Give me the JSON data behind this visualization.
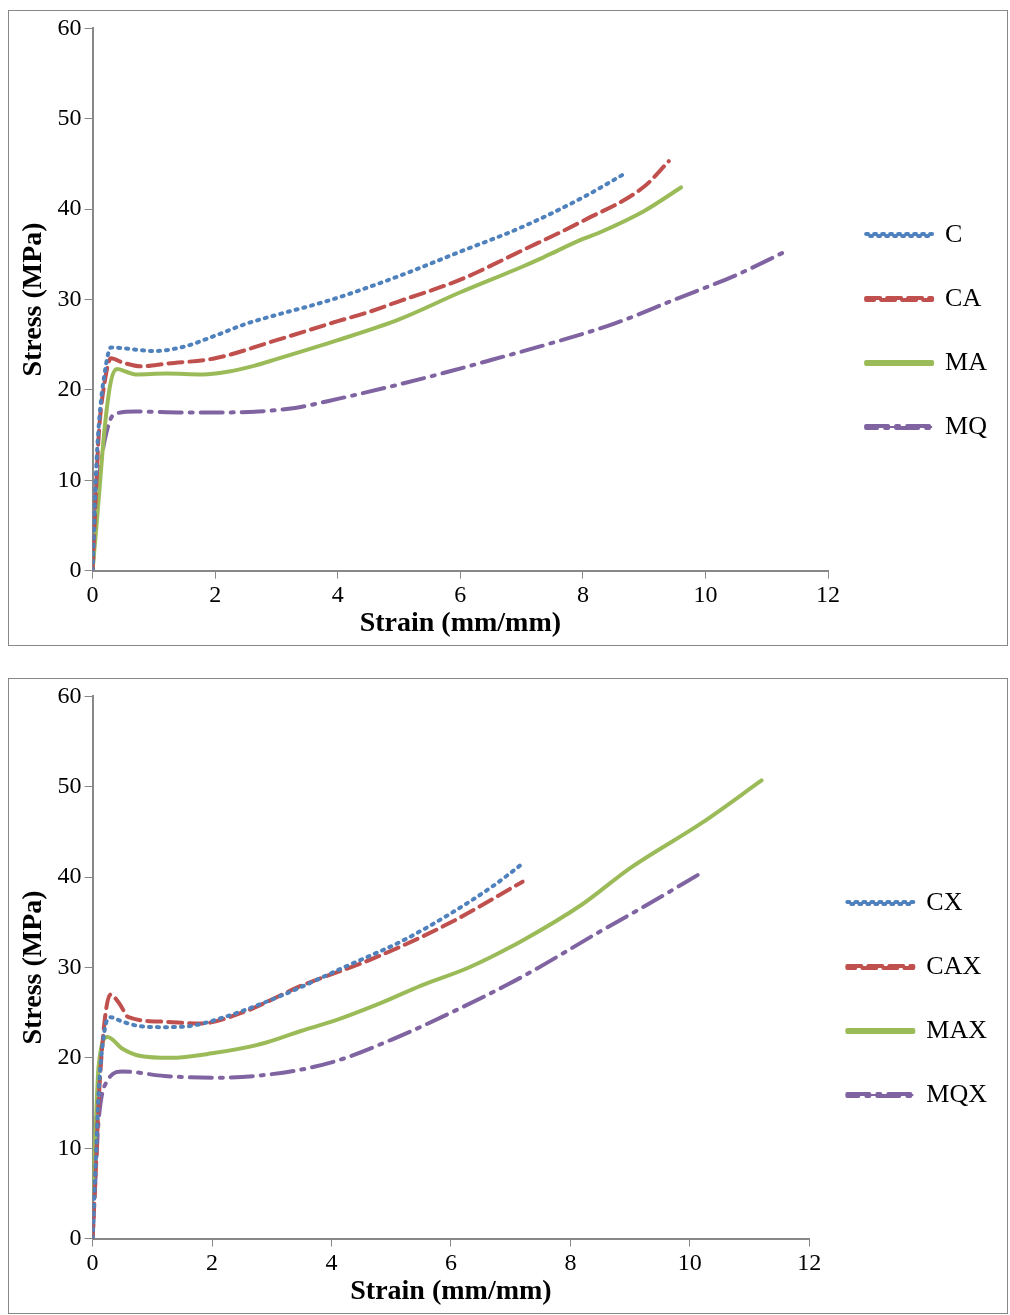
{
  "chart_data": [
    {
      "type": "line",
      "xlabel": "Strain (mm/mm)",
      "ylabel": "Stress (MPa)",
      "xlim": [
        0,
        12
      ],
      "xticks": [
        0,
        2,
        4,
        6,
        8,
        10,
        12
      ],
      "ylim": [
        0,
        60
      ],
      "yticks": [
        0,
        10,
        20,
        30,
        40,
        50,
        60
      ],
      "grid": false,
      "legend": "right",
      "marker": "none",
      "series": [
        {
          "name": "C",
          "color": "#4f81bd",
          "line_style": "dotted",
          "x": [
            0,
            0.05,
            0.1,
            0.2,
            0.3,
            0.5,
            1,
            1.5,
            2,
            2.5,
            3,
            3.5,
            4,
            5,
            6,
            7,
            8,
            8.7
          ],
          "values": [
            0,
            10,
            16,
            22,
            24.7,
            24.6,
            24.3,
            24.8,
            26,
            27.3,
            28.3,
            29.2,
            30.2,
            32.6,
            35.3,
            38,
            41.3,
            44
          ]
        },
        {
          "name": "CA",
          "color": "#c0504d",
          "line_style": "dashed",
          "x": [
            0,
            0.05,
            0.1,
            0.2,
            0.3,
            0.5,
            0.8,
            1.2,
            2,
            3,
            4,
            4.5,
            5,
            6,
            7,
            8,
            9,
            9.4
          ],
          "values": [
            0,
            8,
            15,
            21,
            23.5,
            23,
            22.6,
            22.9,
            23.5,
            25.5,
            27.6,
            28.6,
            29.8,
            32.2,
            35.4,
            38.7,
            42.5,
            45.3
          ]
        },
        {
          "name": "MA",
          "color": "#9bbb59",
          "line_style": "solid",
          "x": [
            0,
            0.1,
            0.2,
            0.3,
            0.4,
            0.55,
            0.7,
            1.2,
            1.8,
            2.2,
            2.6,
            3,
            4,
            5,
            6,
            7,
            7.3,
            8,
            8.3,
            9,
            9.6
          ],
          "values": [
            0,
            8,
            16,
            21,
            22.3,
            22,
            21.7,
            21.8,
            21.7,
            22,
            22.6,
            23.4,
            25.5,
            27.8,
            30.8,
            33.6,
            34.5,
            36.7,
            37.5,
            39.8,
            42.4
          ]
        },
        {
          "name": "MQ",
          "color": "#8064a2",
          "line_style": "dashdot",
          "x": [
            0,
            0.05,
            0.1,
            0.2,
            0.35,
            0.7,
            1.5,
            2,
            2.7,
            3.3,
            4,
            5,
            5.8,
            6.5,
            7.5,
            8.5,
            9.5,
            10.5,
            11.3
          ],
          "values": [
            0,
            6,
            10,
            14.5,
            17.3,
            17.6,
            17.5,
            17.5,
            17.6,
            18,
            19,
            20.6,
            22,
            23.3,
            25.2,
            27.3,
            30,
            32.7,
            35.3
          ]
        }
      ]
    },
    {
      "type": "line",
      "xlabel": "Strain (mm/mm)",
      "ylabel": "Stress (MPa)",
      "xlim": [
        0,
        12
      ],
      "xticks": [
        0,
        2,
        4,
        6,
        8,
        10,
        12
      ],
      "ylim": [
        0,
        60
      ],
      "yticks": [
        0,
        10,
        20,
        30,
        40,
        50,
        60
      ],
      "grid": false,
      "legend": "right",
      "marker": "none",
      "series": [
        {
          "name": "CX",
          "color": "#4f81bd",
          "line_style": "dotted",
          "x": [
            0,
            0.05,
            0.1,
            0.2,
            0.3,
            0.5,
            0.8,
            1.2,
            1.6,
            2.2,
            3.2,
            4.2,
            5.2,
            6,
            6.7,
            7.2
          ],
          "values": [
            0,
            8,
            16,
            23,
            24.5,
            24,
            23.5,
            23.4,
            23.5,
            24.5,
            27,
            30,
            33,
            36,
            39,
            41.5
          ]
        },
        {
          "name": "CAX",
          "color": "#c0504d",
          "line_style": "dashed",
          "x": [
            0,
            0.05,
            0.1,
            0.2,
            0.3,
            0.45,
            0.6,
            1.2,
            1.8,
            2.5,
            3.5,
            4.7,
            6,
            7.2
          ],
          "values": [
            0,
            7,
            15,
            24,
            27,
            26,
            24.5,
            24,
            23.8,
            25,
            28,
            31,
            35,
            39.5
          ]
        },
        {
          "name": "MAX",
          "color": "#9bbb59",
          "line_style": "solid",
          "x": [
            0,
            0.05,
            0.1,
            0.25,
            0.5,
            0.8,
            1.3,
            2,
            2.8,
            3.5,
            4,
            4.8,
            5.5,
            6.3,
            7.2,
            8.2,
            9,
            10.2,
            11.2
          ],
          "values": [
            5,
            12,
            19,
            22.3,
            21,
            20.2,
            20,
            20.5,
            21.5,
            23,
            24,
            26,
            28,
            30,
            33,
            37,
            41,
            46,
            50.7
          ]
        },
        {
          "name": "MQX",
          "color": "#8064a2",
          "line_style": "dashdot",
          "x": [
            0,
            0.05,
            0.1,
            0.25,
            0.5,
            1.2,
            2,
            3,
            4,
            5,
            6,
            7.2,
            8.5,
            9.3,
            10.2
          ],
          "values": [
            0,
            7,
            13,
            17.5,
            18.5,
            18,
            17.8,
            18.2,
            19.5,
            22,
            25,
            29,
            34,
            37,
            40.5
          ]
        }
      ]
    }
  ]
}
